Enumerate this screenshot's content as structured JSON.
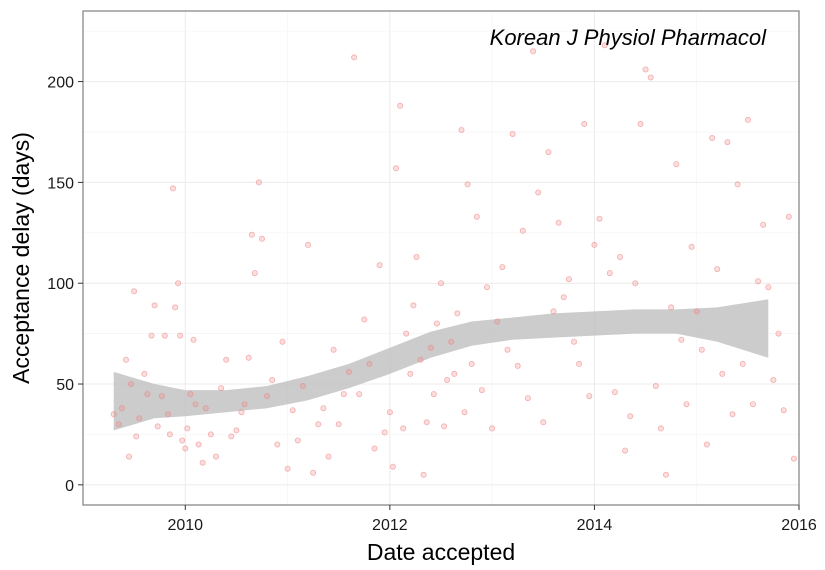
{
  "chart_data": {
    "type": "scatter",
    "title": "",
    "annotation": "Korean J Physiol Pharmacol",
    "xlabel": "Date accepted",
    "ylabel": "Acceptance delay (days)",
    "xlim": [
      2009.0,
      2016.0
    ],
    "ylim": [
      -10,
      235
    ],
    "x_ticks": [
      2010,
      2012,
      2014,
      2016
    ],
    "y_ticks": [
      0,
      50,
      100,
      150,
      200
    ],
    "x_tick_labels": [
      "2010",
      "2012",
      "2014",
      "2016"
    ],
    "y_tick_labels": [
      "0",
      "50",
      "100",
      "150",
      "200"
    ],
    "grid": true,
    "point_color": "#f08080",
    "band_color": "#bfbfbf",
    "smooth_trend": {
      "x": [
        2009.3,
        2009.7,
        2010.0,
        2010.4,
        2010.8,
        2011.2,
        2011.6,
        2012.0,
        2012.4,
        2012.8,
        2013.2,
        2013.6,
        2014.0,
        2014.4,
        2014.8,
        2015.2,
        2015.7
      ],
      "lower": [
        27,
        33,
        34,
        36,
        38,
        42,
        48,
        55,
        63,
        69,
        72,
        73,
        74,
        75,
        75,
        71,
        63
      ],
      "upper": [
        56,
        50,
        47,
        47,
        49,
        54,
        60,
        68,
        76,
        81,
        83,
        85,
        86,
        87,
        87,
        88,
        92
      ]
    },
    "points": [
      [
        2009.3,
        35
      ],
      [
        2009.35,
        30
      ],
      [
        2009.38,
        38
      ],
      [
        2009.42,
        62
      ],
      [
        2009.45,
        14
      ],
      [
        2009.47,
        50
      ],
      [
        2009.5,
        96
      ],
      [
        2009.52,
        24
      ],
      [
        2009.55,
        33
      ],
      [
        2009.6,
        55
      ],
      [
        2009.63,
        45
      ],
      [
        2009.67,
        74
      ],
      [
        2009.7,
        89
      ],
      [
        2009.73,
        29
      ],
      [
        2009.77,
        44
      ],
      [
        2009.8,
        74
      ],
      [
        2009.83,
        35
      ],
      [
        2009.85,
        25
      ],
      [
        2009.88,
        147
      ],
      [
        2009.9,
        88
      ],
      [
        2009.93,
        100
      ],
      [
        2009.95,
        74
      ],
      [
        2009.97,
        22
      ],
      [
        2010.0,
        18
      ],
      [
        2010.02,
        28
      ],
      [
        2010.05,
        45
      ],
      [
        2010.08,
        72
      ],
      [
        2010.1,
        40
      ],
      [
        2010.13,
        20
      ],
      [
        2010.17,
        11
      ],
      [
        2010.2,
        38
      ],
      [
        2010.25,
        25
      ],
      [
        2010.3,
        14
      ],
      [
        2010.35,
        48
      ],
      [
        2010.4,
        62
      ],
      [
        2010.45,
        24
      ],
      [
        2010.5,
        27
      ],
      [
        2010.55,
        36
      ],
      [
        2010.58,
        40
      ],
      [
        2010.62,
        63
      ],
      [
        2010.65,
        124
      ],
      [
        2010.68,
        105
      ],
      [
        2010.72,
        150
      ],
      [
        2010.75,
        122
      ],
      [
        2010.8,
        44
      ],
      [
        2010.85,
        52
      ],
      [
        2010.9,
        20
      ],
      [
        2010.95,
        71
      ],
      [
        2011.0,
        8
      ],
      [
        2011.05,
        37
      ],
      [
        2011.1,
        22
      ],
      [
        2011.15,
        49
      ],
      [
        2011.2,
        119
      ],
      [
        2011.25,
        6
      ],
      [
        2011.3,
        30
      ],
      [
        2011.35,
        38
      ],
      [
        2011.4,
        14
      ],
      [
        2011.45,
        67
      ],
      [
        2011.5,
        30
      ],
      [
        2011.55,
        45
      ],
      [
        2011.6,
        56
      ],
      [
        2011.65,
        212
      ],
      [
        2011.7,
        45
      ],
      [
        2011.75,
        82
      ],
      [
        2011.8,
        60
      ],
      [
        2011.85,
        18
      ],
      [
        2011.9,
        109
      ],
      [
        2011.95,
        26
      ],
      [
        2012.0,
        36
      ],
      [
        2012.03,
        9
      ],
      [
        2012.06,
        157
      ],
      [
        2012.1,
        188
      ],
      [
        2012.13,
        28
      ],
      [
        2012.16,
        75
      ],
      [
        2012.2,
        55
      ],
      [
        2012.23,
        89
      ],
      [
        2012.26,
        113
      ],
      [
        2012.3,
        62
      ],
      [
        2012.33,
        5
      ],
      [
        2012.36,
        31
      ],
      [
        2012.4,
        68
      ],
      [
        2012.43,
        45
      ],
      [
        2012.46,
        80
      ],
      [
        2012.5,
        100
      ],
      [
        2012.53,
        29
      ],
      [
        2012.56,
        52
      ],
      [
        2012.6,
        71
      ],
      [
        2012.63,
        55
      ],
      [
        2012.66,
        85
      ],
      [
        2012.7,
        176
      ],
      [
        2012.73,
        36
      ],
      [
        2012.76,
        149
      ],
      [
        2012.8,
        60
      ],
      [
        2012.85,
        133
      ],
      [
        2012.9,
        47
      ],
      [
        2012.95,
        98
      ],
      [
        2013.0,
        28
      ],
      [
        2013.05,
        81
      ],
      [
        2013.1,
        108
      ],
      [
        2013.15,
        67
      ],
      [
        2013.2,
        174
      ],
      [
        2013.25,
        59
      ],
      [
        2013.3,
        126
      ],
      [
        2013.35,
        43
      ],
      [
        2013.4,
        215
      ],
      [
        2013.45,
        145
      ],
      [
        2013.5,
        31
      ],
      [
        2013.55,
        165
      ],
      [
        2013.6,
        86
      ],
      [
        2013.65,
        130
      ],
      [
        2013.7,
        93
      ],
      [
        2013.75,
        102
      ],
      [
        2013.8,
        71
      ],
      [
        2013.85,
        60
      ],
      [
        2013.9,
        179
      ],
      [
        2013.95,
        44
      ],
      [
        2014.0,
        119
      ],
      [
        2014.05,
        132
      ],
      [
        2014.1,
        218
      ],
      [
        2014.15,
        105
      ],
      [
        2014.2,
        46
      ],
      [
        2014.25,
        113
      ],
      [
        2014.3,
        17
      ],
      [
        2014.35,
        34
      ],
      [
        2014.4,
        100
      ],
      [
        2014.45,
        179
      ],
      [
        2014.5,
        206
      ],
      [
        2014.55,
        202
      ],
      [
        2014.6,
        49
      ],
      [
        2014.65,
        28
      ],
      [
        2014.7,
        5
      ],
      [
        2014.75,
        88
      ],
      [
        2014.8,
        159
      ],
      [
        2014.85,
        72
      ],
      [
        2014.9,
        40
      ],
      [
        2014.95,
        118
      ],
      [
        2015.0,
        86
      ],
      [
        2015.05,
        67
      ],
      [
        2015.1,
        20
      ],
      [
        2015.15,
        172
      ],
      [
        2015.2,
        107
      ],
      [
        2015.25,
        55
      ],
      [
        2015.3,
        170
      ],
      [
        2015.35,
        35
      ],
      [
        2015.4,
        149
      ],
      [
        2015.45,
        60
      ],
      [
        2015.5,
        181
      ],
      [
        2015.55,
        40
      ],
      [
        2015.6,
        101
      ],
      [
        2015.65,
        129
      ],
      [
        2015.7,
        98
      ],
      [
        2015.75,
        52
      ],
      [
        2015.8,
        75
      ],
      [
        2015.85,
        37
      ],
      [
        2015.9,
        133
      ],
      [
        2015.95,
        13
      ]
    ]
  }
}
